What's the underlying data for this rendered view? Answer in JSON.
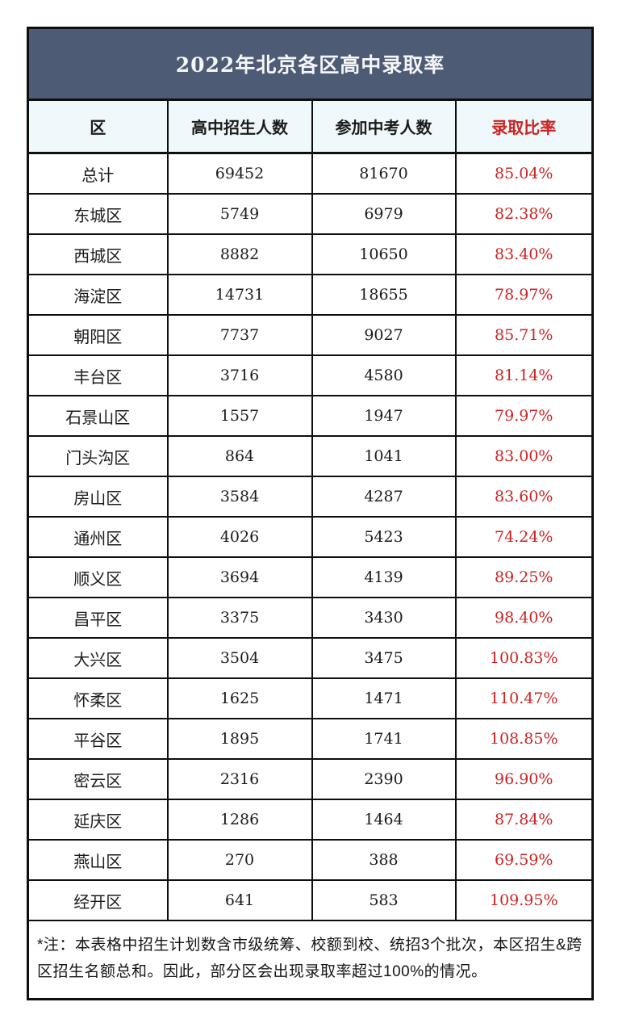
{
  "title": "2022年北京各区高中录取率",
  "columns": {
    "district": "区",
    "enrolled": "高中招生人数",
    "examinees": "参加中考人数",
    "rate": "录取比率"
  },
  "rows": [
    {
      "district": "总计",
      "enrolled": "69452",
      "examinees": "81670",
      "rate": "85.04%"
    },
    {
      "district": "东城区",
      "enrolled": "5749",
      "examinees": "6979",
      "rate": "82.38%"
    },
    {
      "district": "西城区",
      "enrolled": "8882",
      "examinees": "10650",
      "rate": "83.40%"
    },
    {
      "district": "海淀区",
      "enrolled": "14731",
      "examinees": "18655",
      "rate": "78.97%"
    },
    {
      "district": "朝阳区",
      "enrolled": "7737",
      "examinees": "9027",
      "rate": "85.71%"
    },
    {
      "district": "丰台区",
      "enrolled": "3716",
      "examinees": "4580",
      "rate": "81.14%"
    },
    {
      "district": "石景山区",
      "enrolled": "1557",
      "examinees": "1947",
      "rate": "79.97%"
    },
    {
      "district": "门头沟区",
      "enrolled": "864",
      "examinees": "1041",
      "rate": "83.00%"
    },
    {
      "district": "房山区",
      "enrolled": "3584",
      "examinees": "4287",
      "rate": "83.60%"
    },
    {
      "district": "通州区",
      "enrolled": "4026",
      "examinees": "5423",
      "rate": "74.24%"
    },
    {
      "district": "顺义区",
      "enrolled": "3694",
      "examinees": "4139",
      "rate": "89.25%"
    },
    {
      "district": "昌平区",
      "enrolled": "3375",
      "examinees": "3430",
      "rate": "98.40%"
    },
    {
      "district": "大兴区",
      "enrolled": "3504",
      "examinees": "3475",
      "rate": "100.83%"
    },
    {
      "district": "怀柔区",
      "enrolled": "1625",
      "examinees": "1471",
      "rate": "110.47%"
    },
    {
      "district": "平谷区",
      "enrolled": "1895",
      "examinees": "1741",
      "rate": "108.85%"
    },
    {
      "district": "密云区",
      "enrolled": "2316",
      "examinees": "2390",
      "rate": "96.90%"
    },
    {
      "district": "延庆区",
      "enrolled": "1286",
      "examinees": "1464",
      "rate": "87.84%"
    },
    {
      "district": "燕山区",
      "enrolled": "270",
      "examinees": "388",
      "rate": "69.59%"
    },
    {
      "district": "经开区",
      "enrolled": "641",
      "examinees": "583",
      "rate": "109.95%"
    }
  ],
  "note": "*注：本表格中招生计划数含市级统筹、校额到校、统招3个批次，本区招生&跨区招生名额总和。因此，部分区会出现录取率超过100%的情况。",
  "colors": {
    "title_band_bg": "#4d5c74",
    "title_text": "#f5f6f8",
    "header_row_bg": "#eff8fa",
    "accent_red": "#cc2222",
    "border": "#0e0e0e",
    "row_bg": "#ffffff"
  }
}
